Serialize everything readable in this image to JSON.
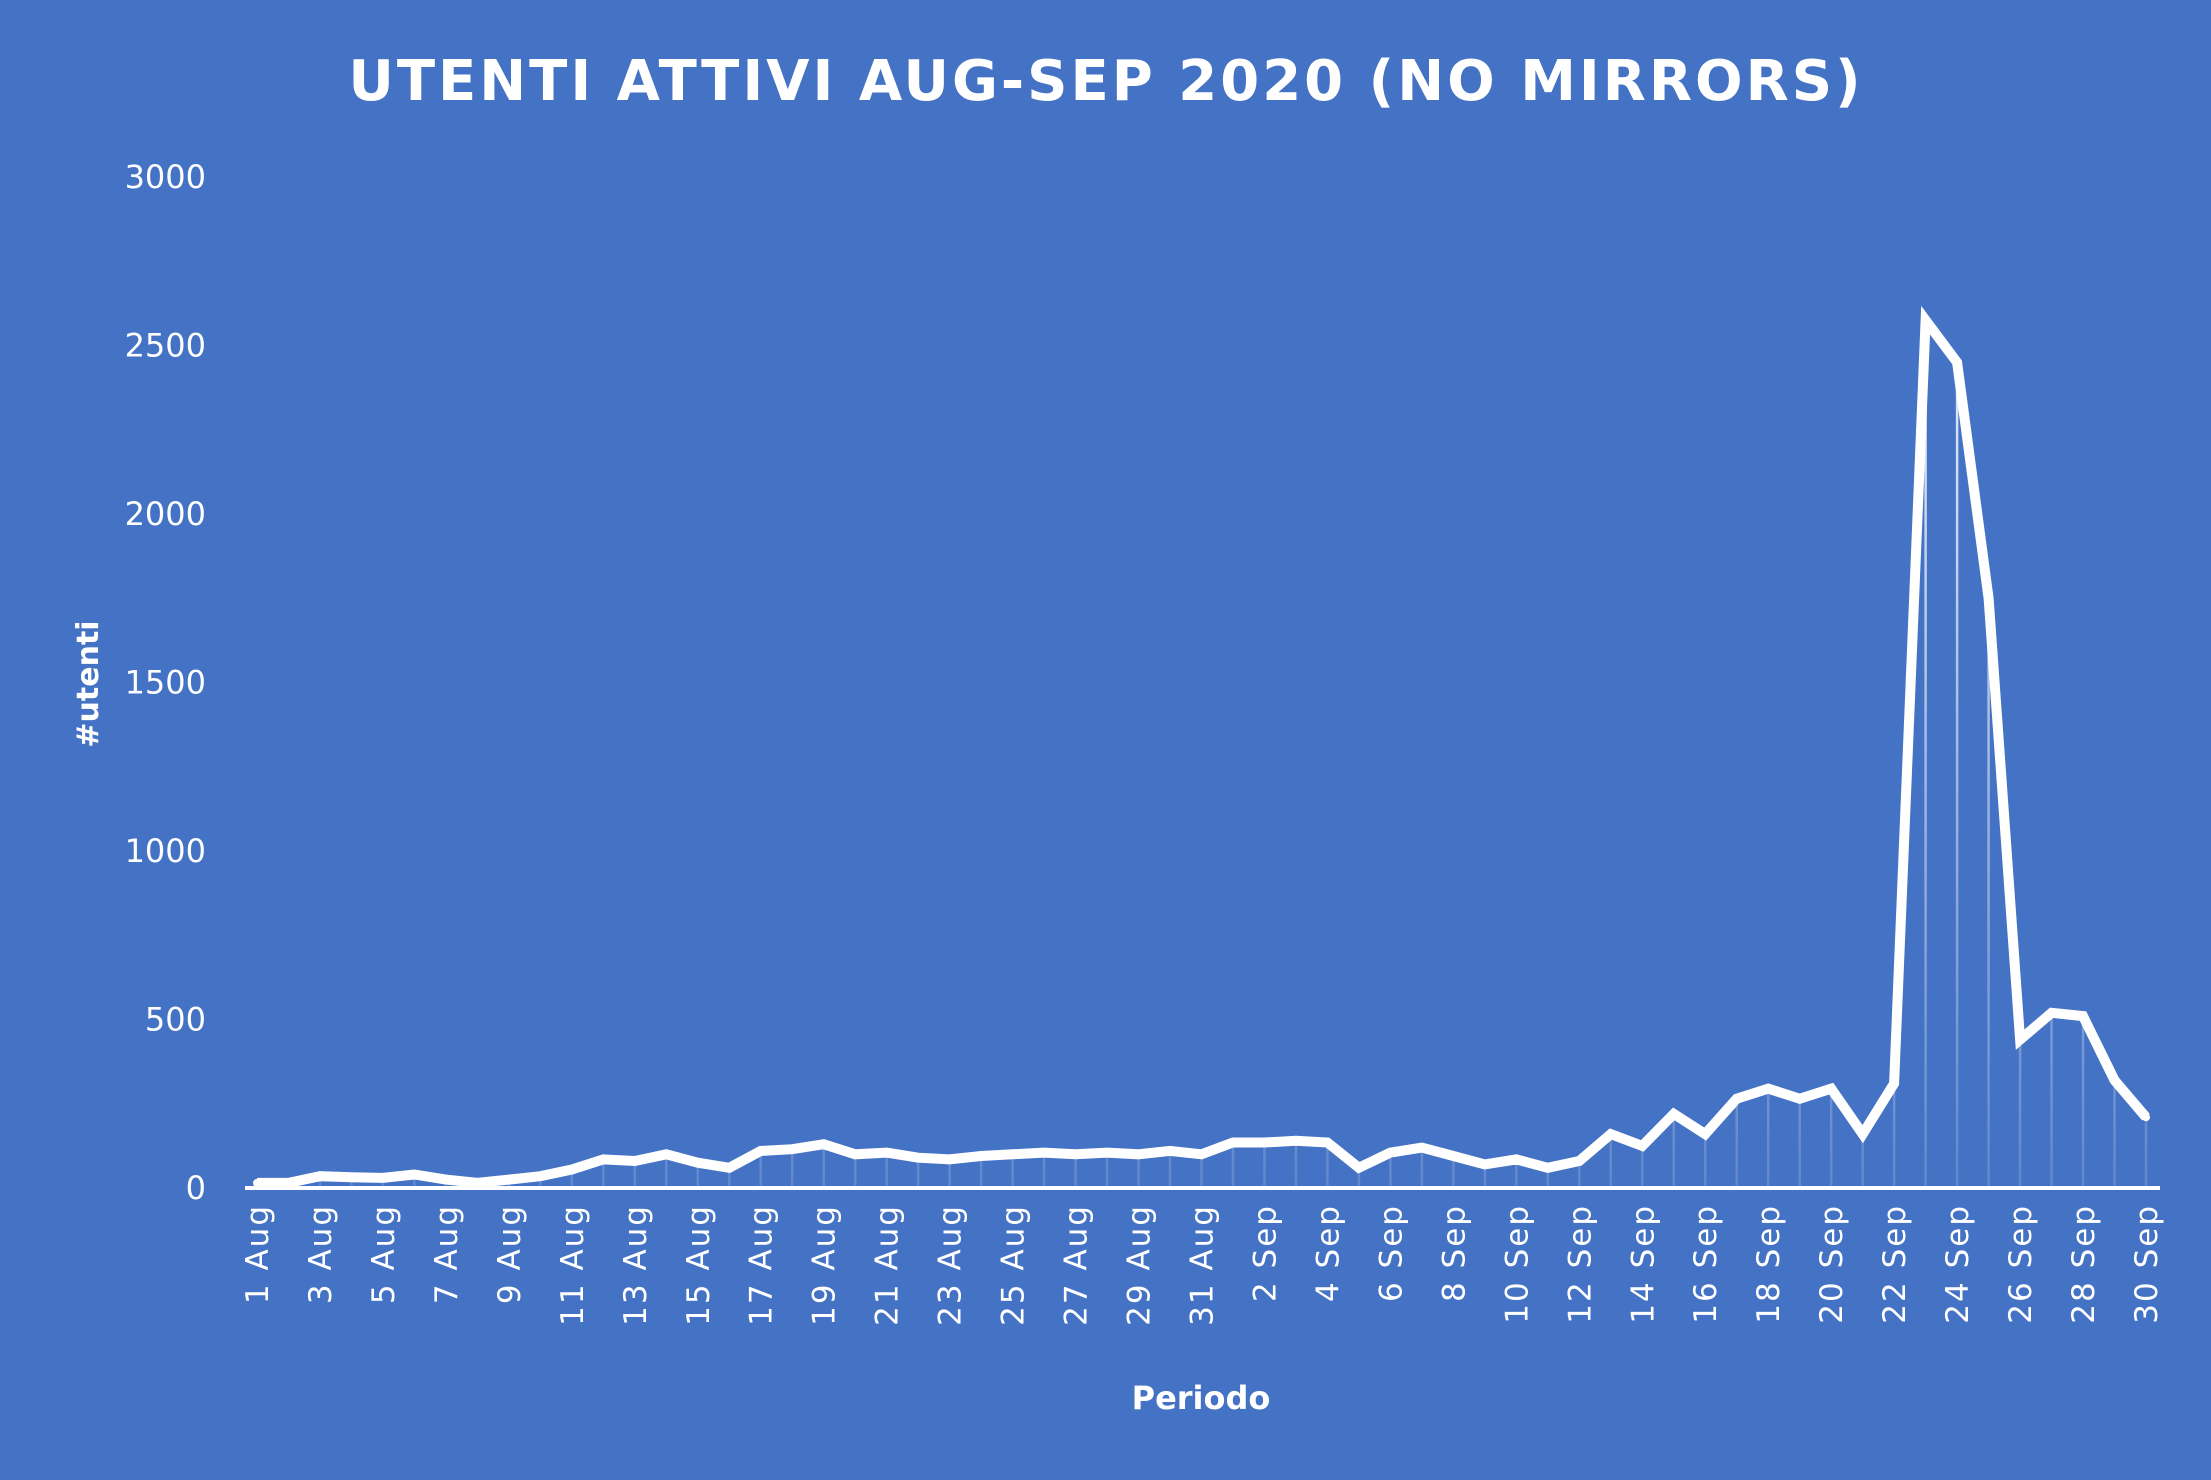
{
  "chart_data": {
    "type": "line",
    "title": "UTENTI ATTIVI AUG-SEP 2020 (NO MIRRORS)",
    "xlabel": "Periodo",
    "ylabel": "#utenti",
    "ylim": [
      0,
      3000
    ],
    "yticks": [
      "0",
      "500",
      "1000",
      "1500",
      "2000",
      "2500",
      "3000"
    ],
    "grid": false,
    "legend": "none",
    "x": [
      "1 Aug",
      "2 Aug",
      "3 Aug",
      "4 Aug",
      "5 Aug",
      "6 Aug",
      "7 Aug",
      "8 Aug",
      "9 Aug",
      "10 Aug",
      "11 Aug",
      "12 Aug",
      "13 Aug",
      "14 Aug",
      "15 Aug",
      "16 Aug",
      "17 Aug",
      "18 Aug",
      "19 Aug",
      "20 Aug",
      "21 Aug",
      "22 Aug",
      "23 Aug",
      "24 Aug",
      "25 Aug",
      "26 Aug",
      "27 Aug",
      "28 Aug",
      "29 Aug",
      "30 Aug",
      "31 Aug",
      "1 Sep",
      "2 Sep",
      "3 Sep",
      "4 Sep",
      "5 Sep",
      "6 Sep",
      "7 Sep",
      "8 Sep",
      "9 Sep",
      "10 Sep",
      "11 Sep",
      "12 Sep",
      "13 Sep",
      "14 Sep",
      "15 Sep",
      "16 Sep",
      "17 Sep",
      "18 Sep",
      "19 Sep",
      "20 Sep",
      "21 Sep",
      "22 Sep",
      "23 Sep",
      "24 Sep",
      "25 Sep",
      "26 Sep",
      "27 Sep",
      "28 Sep",
      "29 Sep",
      "30 Sep"
    ],
    "visible_xticks": [
      "1 Aug",
      "3 Aug",
      "5 Aug",
      "7 Aug",
      "9 Aug",
      "11 Aug",
      "13 Aug",
      "15 Aug",
      "17 Aug",
      "19 Aug",
      "21 Aug",
      "23 Aug",
      "25 Aug",
      "27 Aug",
      "29 Aug",
      "31 Aug",
      "2 Sep",
      "4 Sep",
      "6 Sep",
      "8 Sep",
      "10 Sep",
      "12 Sep",
      "14 Sep",
      "16 Sep",
      "18 Sep",
      "20 Sep",
      "22 Sep",
      "24 Sep",
      "26 Sep",
      "28 Sep",
      "30 Sep"
    ],
    "series": [
      {
        "values": [
          15,
          15,
          35,
          32,
          30,
          40,
          25,
          15,
          25,
          35,
          55,
          85,
          80,
          100,
          75,
          60,
          110,
          115,
          130,
          100,
          105,
          90,
          85,
          95,
          100,
          105,
          100,
          105,
          100,
          110,
          100,
          135,
          135,
          140,
          135,
          60,
          105,
          120,
          95,
          70,
          85,
          60,
          80,
          160,
          125,
          220,
          160,
          265,
          295,
          265,
          295,
          160,
          310,
          2575,
          2450,
          1750,
          440,
          520,
          510,
          320,
          210
        ],
        "color": "#ffffff"
      }
    ]
  }
}
